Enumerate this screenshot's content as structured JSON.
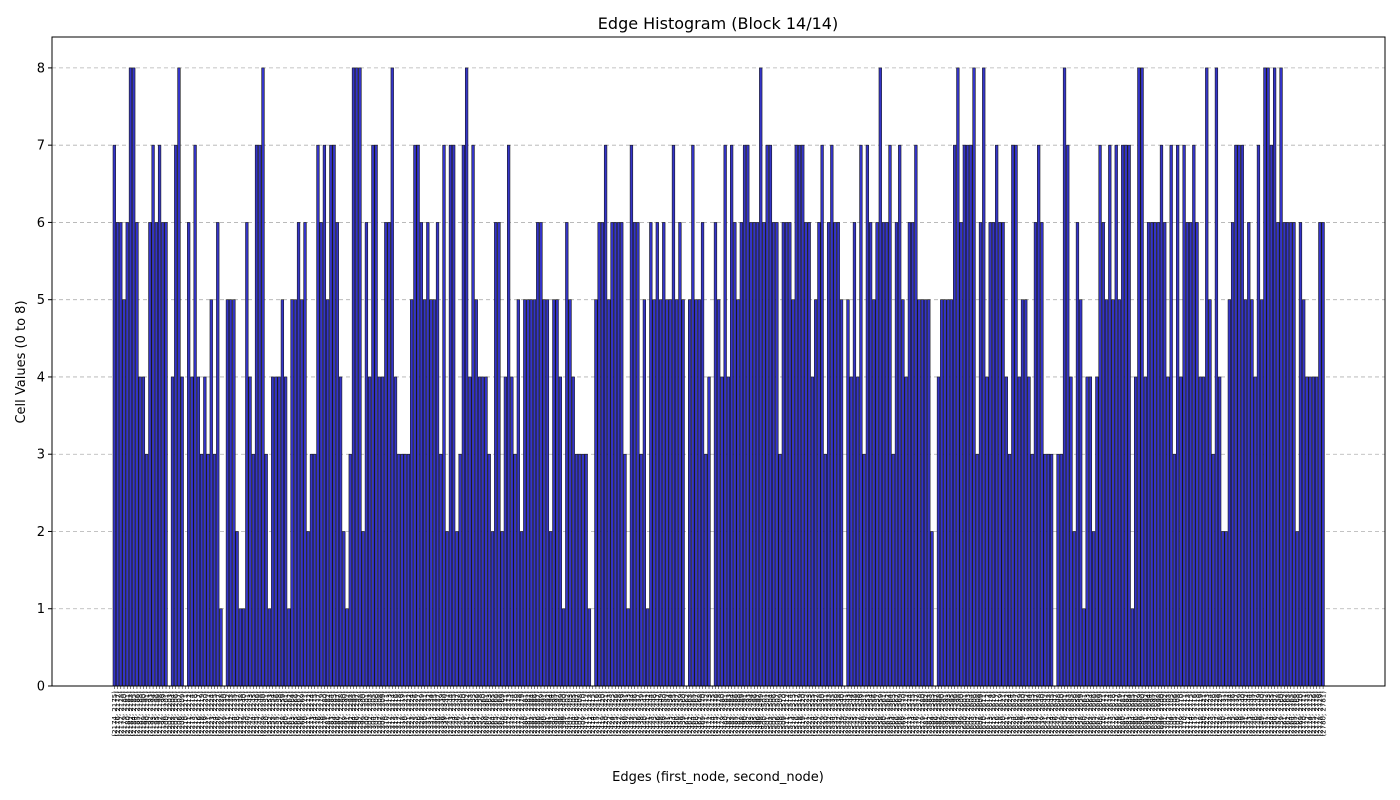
{
  "chart_data": {
    "type": "bar",
    "title": "Edge Histogram (Block 14/14)",
    "xlabel": "Edges (first_node, second_node)",
    "ylabel": "Cell Values (0 to 8)",
    "ylim": [
      0,
      8.4
    ],
    "yticks": [
      0,
      1,
      2,
      3,
      4,
      5,
      6,
      7,
      8
    ],
    "grid": "y",
    "first_label": "(2174, 2175)",
    "last_label": "(2780, 2781)",
    "values": [
      7,
      6,
      6,
      5,
      6,
      8,
      8,
      6,
      4,
      4,
      3,
      6,
      7,
      6,
      7,
      6,
      6,
      0,
      4,
      7,
      8,
      4,
      0,
      6,
      4,
      7,
      4,
      3,
      4,
      3,
      5,
      3,
      6,
      1,
      0,
      5,
      5,
      5,
      2,
      1,
      1,
      6,
      4,
      3,
      7,
      7,
      8,
      3,
      1,
      4,
      4,
      4,
      5,
      4,
      1,
      5,
      5,
      6,
      5,
      6,
      2,
      3,
      3,
      7,
      6,
      7,
      5,
      7,
      7,
      6,
      4,
      2,
      1,
      3,
      8,
      8,
      8,
      2,
      6,
      4,
      7,
      7,
      4,
      4,
      6,
      6,
      8,
      4,
      3,
      3,
      3,
      3,
      5,
      7,
      7,
      6,
      5,
      6,
      5,
      5,
      6,
      3,
      7,
      2,
      7,
      7,
      2,
      3,
      7,
      8,
      4,
      7,
      5,
      4,
      4,
      4,
      3,
      2,
      6,
      6,
      2,
      4,
      7,
      4,
      3,
      5,
      2,
      5,
      5,
      5,
      5,
      6,
      6,
      5,
      5,
      2,
      5,
      5,
      4,
      1,
      6,
      5,
      4,
      3,
      3,
      3,
      3,
      1,
      0,
      5,
      6,
      6,
      7,
      5,
      6,
      6,
      6,
      6,
      3,
      1,
      7,
      6,
      6,
      3,
      5,
      1,
      6,
      5,
      6,
      5,
      6,
      5,
      5,
      7,
      5,
      6,
      5,
      0,
      5,
      7,
      5,
      5,
      6,
      3,
      4,
      0,
      6,
      5,
      4,
      7,
      4,
      7,
      6,
      5,
      6,
      7,
      7,
      6,
      6,
      6,
      8,
      6,
      7,
      7,
      6,
      6,
      3,
      6,
      6,
      6,
      5,
      7,
      7,
      7,
      6,
      6,
      4,
      5,
      6,
      7,
      3,
      6,
      7,
      6,
      6,
      5,
      0,
      5,
      4,
      6,
      4,
      7,
      3,
      7,
      6,
      5,
      6,
      8,
      6,
      6,
      7,
      3,
      6,
      7,
      5,
      4,
      6,
      6,
      7,
      5,
      5,
      5,
      5,
      2,
      0,
      4,
      5,
      5,
      5,
      5,
      7,
      8,
      6,
      7,
      7,
      7,
      8,
      3,
      6,
      8,
      4,
      6,
      6,
      7,
      6,
      6,
      4,
      3,
      7,
      7,
      4,
      5,
      5,
      4,
      3,
      6,
      7,
      6,
      3,
      3,
      3,
      0,
      3,
      3,
      8,
      7,
      4,
      2,
      6,
      5,
      1,
      4,
      4,
      2,
      4,
      7,
      6,
      5,
      7,
      5,
      7,
      5,
      7,
      7,
      7,
      1,
      4,
      8,
      8,
      4,
      6,
      6,
      6,
      6,
      7,
      6,
      4,
      7,
      3,
      7,
      4,
      7,
      6,
      6,
      7,
      6,
      4,
      4,
      8,
      5,
      3,
      8,
      4,
      2,
      2,
      5,
      6,
      7,
      7,
      7,
      5,
      6,
      5,
      4,
      7,
      5,
      8,
      8,
      7,
      8,
      6,
      8,
      6,
      6,
      6,
      6,
      2,
      6,
      5,
      4,
      4,
      4,
      4,
      6,
      6
    ]
  }
}
